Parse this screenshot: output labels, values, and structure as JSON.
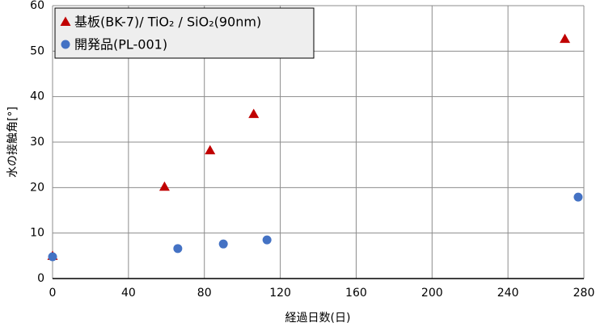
{
  "chart_data": {
    "type": "scatter",
    "x_label": "経過日数(日)",
    "y_label": "水の接触角[°]",
    "series": [
      {
        "name": "基板(BK-7)/ TiO₂ / SiO₂(90nm)",
        "color": "#c00000",
        "marker": "triangle",
        "x": [
          0,
          59,
          83,
          106,
          270
        ],
        "values": [
          5,
          20.2,
          28.2,
          36.2,
          52.7
        ]
      },
      {
        "name": "開発品(PL-001)",
        "color": "#4472c4",
        "marker": "circle",
        "x": [
          0,
          66,
          90,
          113,
          277
        ],
        "values": [
          4.8,
          6.6,
          7.6,
          8.5,
          17.9
        ]
      }
    ],
    "xlim": [
      0,
      280
    ],
    "xticks": [
      0,
      40,
      80,
      120,
      160,
      200,
      240,
      280
    ],
    "ylim": [
      0,
      60
    ],
    "yticks": [
      0,
      10,
      20,
      30,
      40,
      50,
      60
    ],
    "grid": true,
    "legend": "upper left"
  }
}
